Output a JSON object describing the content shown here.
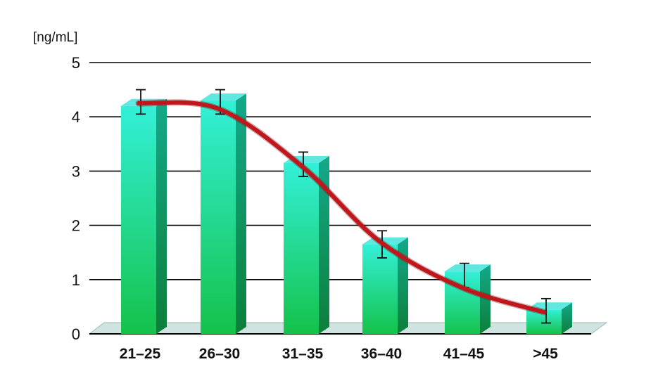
{
  "chart_data": {
    "type": "bar",
    "ylabel": "[ng/mL]",
    "ylim": [
      0,
      5
    ],
    "yticks": [
      "0",
      "1",
      "2",
      "3",
      "4",
      "5"
    ],
    "categories": [
      "21–25",
      "26–30",
      "31–35",
      "36–40",
      "41–45",
      ">45"
    ],
    "values": [
      4.2,
      4.3,
      3.15,
      1.65,
      1.15,
      0.45
    ],
    "error_low": [
      4.05,
      4.05,
      2.9,
      1.4,
      0.85,
      0.2
    ],
    "error_high": [
      4.5,
      4.5,
      3.35,
      1.9,
      1.3,
      0.65
    ],
    "trend_line": [
      4.25,
      4.15,
      3.1,
      1.7,
      0.85,
      0.4
    ],
    "grid": true,
    "colors": {
      "bar_top": "#33f0d8",
      "bar_bottom": "#14c24a",
      "bar_side": "#0f8f5a",
      "bar_cap": "#5fe8e0",
      "trend": "#c0171c",
      "floor": "#cfe3e0",
      "grid": "#000000"
    }
  }
}
